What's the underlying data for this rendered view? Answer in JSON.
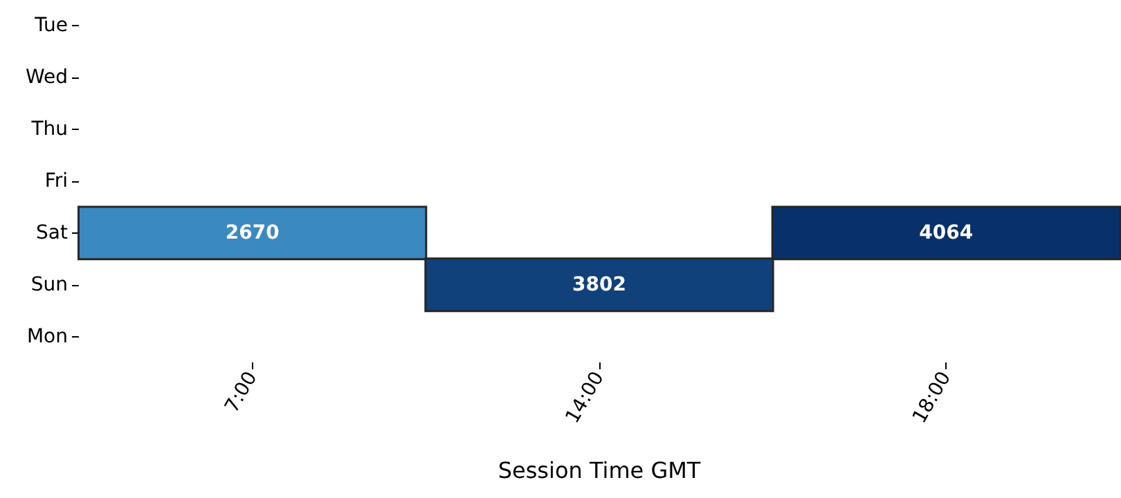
{
  "chart_data": {
    "type": "heatmap",
    "xlabel": "Session Time GMT",
    "categories": [
      "7:00",
      "14:00",
      "18:00"
    ],
    "y_categories": [
      "Tue",
      "Wed",
      "Thu",
      "Fri",
      "Sat",
      "Sun",
      "Mon"
    ],
    "cells": [
      [
        null,
        null,
        null
      ],
      [
        null,
        null,
        null
      ],
      [
        null,
        null,
        null
      ],
      [
        null,
        null,
        null
      ],
      [
        2670,
        null,
        4064
      ],
      [
        null,
        3802,
        null
      ],
      [
        null,
        null,
        null
      ]
    ],
    "data_labels": true
  }
}
